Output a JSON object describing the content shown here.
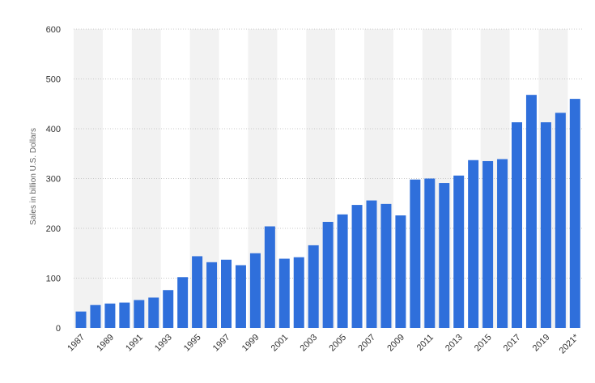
{
  "chart_data": {
    "type": "bar",
    "title": "",
    "xlabel": "",
    "ylabel": "Sales in billion U.S. Dollars",
    "ylim": [
      0,
      600
    ],
    "yticks": [
      "0",
      "100",
      "200",
      "300",
      "400",
      "500",
      "600"
    ],
    "grid": true,
    "legend": "none",
    "bar_color": "#2f6fdb",
    "band_color": "#f2f2f2",
    "categories": [
      "1987",
      "1988",
      "1989",
      "1990",
      "1991",
      "1992",
      "1993",
      "1994",
      "1995",
      "1996",
      "1997",
      "1998",
      "1999",
      "2000",
      "2001",
      "2002",
      "2003",
      "2004",
      "2005",
      "2006",
      "2007",
      "2008",
      "2009",
      "2010",
      "2011",
      "2012",
      "2013",
      "2014",
      "2015",
      "2016",
      "2017",
      "2018",
      "2019",
      "2020",
      "2021*"
    ],
    "tick_labels": [
      "1987",
      "1989",
      "1991",
      "1993",
      "1995",
      "1997",
      "1999",
      "2001",
      "2003",
      "2005",
      "2007",
      "2009",
      "2011",
      "2013",
      "2015",
      "2017",
      "2019",
      "2021*"
    ],
    "values": [
      33,
      46,
      49,
      51,
      56,
      61,
      76,
      102,
      144,
      132,
      137,
      126,
      150,
      204,
      139,
      142,
      166,
      213,
      228,
      247,
      256,
      249,
      226,
      298,
      300,
      291,
      306,
      337,
      335,
      339,
      413,
      468,
      413,
      432,
      460
    ]
  }
}
